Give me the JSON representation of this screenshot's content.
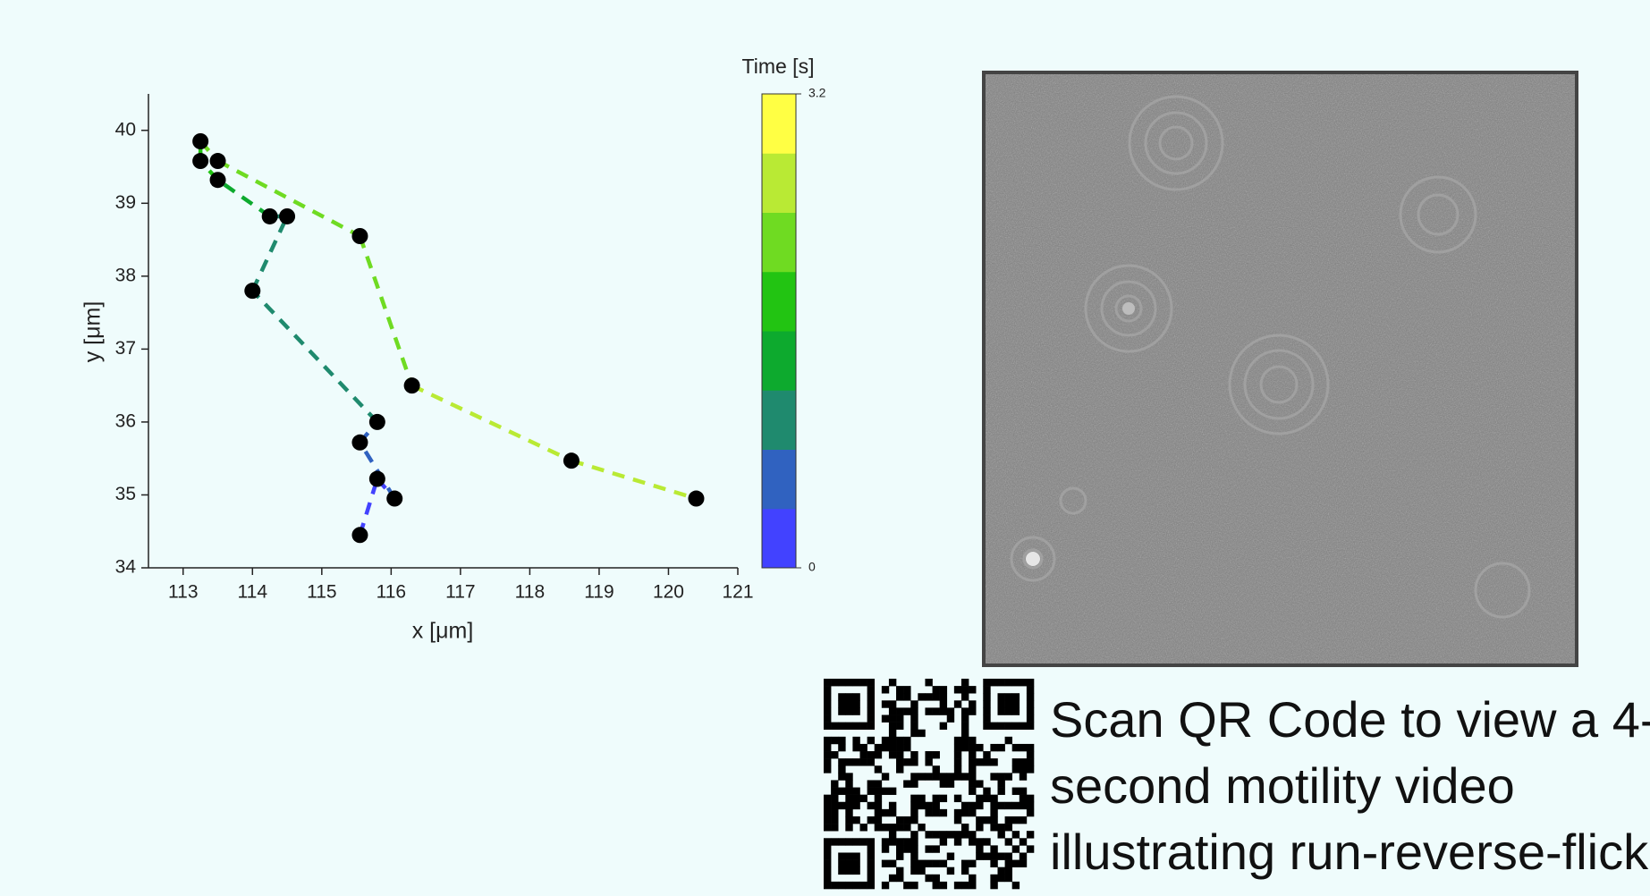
{
  "chart_data": {
    "type": "trajectory",
    "xlabel": "x [μm]",
    "ylabel": "y [μm]",
    "x": [
      115.55,
      115.8,
      116.05,
      115.55,
      115.8,
      114.0,
      114.5,
      114.25,
      113.5,
      113.25,
      113.25,
      113.5,
      115.55,
      116.3,
      118.6,
      120.4
    ],
    "values": [
      34.45,
      35.22,
      34.95,
      35.72,
      36.0,
      37.8,
      38.82,
      38.82,
      39.32,
      39.58,
      39.85,
      39.58,
      38.55,
      36.5,
      35.47,
      34.95
    ],
    "time": [
      0,
      0.2,
      0.4,
      0.6,
      0.8,
      1.0,
      1.2,
      1.4,
      1.6,
      1.8,
      2.0,
      2.2,
      2.4,
      2.6,
      2.8,
      3.0
    ],
    "marker_color": "#000000",
    "xlim": [
      112.5,
      121
    ],
    "xticks": [
      113,
      114,
      115,
      116,
      117,
      118,
      119,
      120,
      121
    ],
    "ylim": [
      34,
      40.5
    ],
    "yticks": [
      34,
      35,
      36,
      37,
      38,
      39,
      40
    ],
    "colorbar": {
      "label": "Time [s]",
      "clim": [
        0,
        3.2
      ],
      "ticks": [
        0,
        3.2
      ],
      "colors": [
        "#4242ff",
        "#3062c0",
        "#1f8a6e",
        "#0daa2e",
        "#22c412",
        "#6fdb22",
        "#b9ea34",
        "#ffff44"
      ]
    }
  },
  "caption": [
    "Scan QR Code to view a 4-",
    "second motility video",
    "illustrating run-reverse-flick"
  ]
}
